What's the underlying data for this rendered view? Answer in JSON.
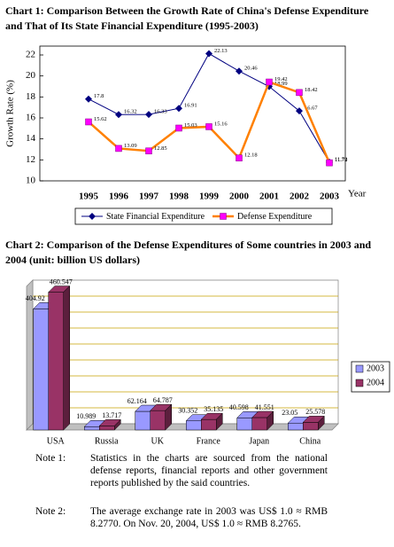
{
  "chart_data": [
    {
      "type": "line",
      "title": "Chart 1:    Comparison Between the Growth Rate of China's Defense Expenditure and That of Its State Financial Expenditure (1995-2003)",
      "y_label": "Growth Rate (%)",
      "x_label": "Year",
      "categories": [
        "1995",
        "1996",
        "1997",
        "1998",
        "1999",
        "2000",
        "2001",
        "2002",
        "2003"
      ],
      "series": [
        {
          "name": "State Financial Expenditure",
          "color": "#000080",
          "marker": "diamond",
          "marker_color": "#000080",
          "values": [
            17.8,
            16.32,
            16.33,
            16.91,
            22.13,
            20.46,
            18.99,
            16.67,
            11.78
          ]
        },
        {
          "name": "Defense Expenditure",
          "color": "#ff8000",
          "marker": "square",
          "marker_color": "#ff00ff",
          "values": [
            15.62,
            13.09,
            12.85,
            15.03,
            15.16,
            12.18,
            19.42,
            18.42,
            11.72
          ]
        }
      ],
      "ylim": [
        10,
        22
      ],
      "yticks": [
        10,
        12,
        14,
        16,
        18,
        20,
        22
      ],
      "legend": "bottom"
    },
    {
      "type": "bar3d",
      "title": "Chart 2: Comparison of the Defense Expenditures of Some countries in 2003 and 2004 (unit: billion US dollars)",
      "categories": [
        "USA",
        "Russia",
        "UK",
        "France",
        "Japan",
        "China"
      ],
      "series": [
        {
          "name": "2003",
          "color": "#9999ff",
          "values": [
            404.92,
            10.989,
            62.164,
            30.352,
            40.598,
            23.05
          ]
        },
        {
          "name": "2004",
          "color": "#993366",
          "values": [
            460.547,
            13.717,
            64.787,
            35.135,
            41.551,
            25.578
          ]
        }
      ],
      "ylim": [
        0,
        480
      ],
      "legend": "right"
    }
  ],
  "notes": [
    {
      "label": "Note 1:",
      "text": "Statistics in the charts are sourced from the national defense reports, financial reports and other government reports published by the said countries."
    },
    {
      "label": "Note 2:",
      "text": "The average exchange rate in 2003 was US$ 1.0 ≈ RMB 8.2770. On Nov. 20, 2004, US$ 1.0 ≈ RMB 8.2765."
    }
  ]
}
